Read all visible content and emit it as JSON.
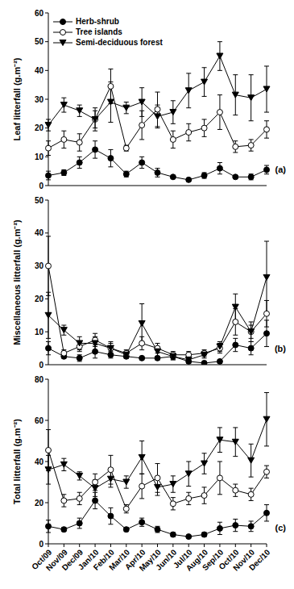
{
  "chart_data": [
    {
      "type": "line",
      "ylabel": "Leaf litterfall (g.m⁻²)",
      "label": "(a)",
      "categories": [
        "Oct/09",
        "Nov/09",
        "Dec/09",
        "Jan/10",
        "Feb/10",
        "Mar/10",
        "Apr/10",
        "May/10",
        "Jun/10",
        "Jul/10",
        "Aug/10",
        "Sep/10",
        "Oct/10",
        "Nov/10",
        "Dec/10"
      ],
      "series": [
        {
          "name": "Herb-shrub",
          "color": "#000000",
          "marker": "circle",
          "line_style": "solid",
          "values": [
            3.5,
            4.5,
            8,
            12.5,
            9.5,
            4,
            8,
            4.5,
            3,
            2,
            3.5,
            6,
            3,
            3,
            5.5
          ],
          "errors": [
            1.5,
            1,
            2,
            3,
            3,
            1,
            2,
            1.5,
            0.5,
            0.5,
            1,
            2,
            0.5,
            1,
            1.5
          ]
        },
        {
          "name": "Tree islands",
          "color": "#000000",
          "marker": "open_circle",
          "line_style": "solid",
          "values": [
            13,
            16,
            15,
            23,
            34.5,
            13,
            21,
            26.5,
            16,
            18.5,
            20,
            25.5,
            13.5,
            14,
            19.5
          ],
          "errors": [
            2.5,
            3,
            3,
            3,
            6,
            1,
            5,
            6,
            3,
            3,
            3,
            6,
            2,
            2,
            3
          ]
        },
        {
          "name": "Semi-deciduous forest",
          "color": "#000000",
          "marker": "triangle_down",
          "line_style": "solid",
          "values": [
            21,
            28,
            26,
            23,
            29,
            27,
            29,
            24,
            25.5,
            33,
            36,
            45,
            31.5,
            30.5,
            33.5
          ],
          "errors": [
            2,
            2.5,
            2,
            4,
            7,
            2,
            5,
            4,
            4,
            6,
            5,
            5,
            7,
            8,
            8
          ]
        }
      ],
      "ylim": [
        0,
        60
      ],
      "yticks": [
        0,
        10,
        20,
        30,
        40,
        50,
        60
      ],
      "grid": false,
      "legend": "upper left",
      "tick_labels": "y"
    },
    {
      "type": "line",
      "ylabel": "Miscellaneous litterfall (g.m⁻²)",
      "label": "(b)",
      "categories": [
        "Oct/09",
        "Nov/09",
        "Dec/09",
        "Jan/10",
        "Feb/10",
        "Mar/10",
        "Apr/10",
        "May/10",
        "Jun/10",
        "Jul/10",
        "Aug/10",
        "Sep/10",
        "Oct/10",
        "Nov/10",
        "Dec/10"
      ],
      "series": [
        {
          "name": "Herb-shrub",
          "color": "#000000",
          "marker": "circle",
          "line_style": "solid",
          "values": [
            5,
            2.5,
            2,
            4,
            3,
            2.5,
            2,
            2,
            2.5,
            1,
            0.5,
            1,
            6,
            5,
            9.5
          ],
          "errors": [
            2,
            0.5,
            1,
            2,
            1,
            0.5,
            0.5,
            0.5,
            1,
            0.5,
            0.3,
            0.5,
            2,
            2,
            4
          ]
        },
        {
          "name": "Tree islands",
          "color": "#000000",
          "marker": "open_circle",
          "line_style": "solid",
          "values": [
            30,
            3.5,
            5.5,
            7.5,
            5,
            3.5,
            6.5,
            5,
            3,
            3,
            3.5,
            5,
            13,
            10,
            15.5
          ],
          "errors": [
            9,
            1,
            1.5,
            2,
            1.5,
            1,
            2,
            1.5,
            1,
            1,
            1,
            1.5,
            4,
            2,
            4
          ]
        },
        {
          "name": "Semi-deciduous forest",
          "color": "#000000",
          "marker": "triangle_down",
          "line_style": "solid",
          "values": [
            15,
            10.5,
            6.5,
            6.5,
            5,
            3,
            12.5,
            4,
            2.5,
            1.5,
            3,
            5.5,
            17.5,
            10,
            26.5
          ],
          "errors": [
            7,
            1.5,
            2,
            2,
            2,
            1,
            6,
            1.5,
            1,
            0.5,
            1,
            1.5,
            4,
            3,
            11
          ]
        }
      ],
      "ylim": [
        0,
        50
      ],
      "yticks": [
        0,
        10,
        20,
        30,
        40,
        50
      ],
      "grid": false,
      "tick_labels": "y"
    },
    {
      "type": "line",
      "ylabel": "Total litterfall (g.m⁻²)",
      "label": "(c)",
      "categories": [
        "Oct/09",
        "Nov/09",
        "Dec/09",
        "Jan/10",
        "Feb/10",
        "Mar/10",
        "Apr/10",
        "May/10",
        "Jun/10",
        "Jul/10",
        "Aug/10",
        "Sep/10",
        "Oct/10",
        "Nov/10",
        "Dec/10"
      ],
      "series": [
        {
          "name": "Herb-shrub",
          "color": "#000000",
          "marker": "circle",
          "line_style": "solid",
          "values": [
            8.5,
            7,
            10,
            21,
            13.5,
            7,
            10.5,
            7,
            4.5,
            3.5,
            4.5,
            7.5,
            9,
            8.5,
            15
          ],
          "errors": [
            3,
            1,
            2.5,
            4,
            4,
            1,
            2,
            1.5,
            1,
            0.5,
            1,
            3,
            3,
            2.5,
            4
          ]
        },
        {
          "name": "Tree islands",
          "color": "#000000",
          "marker": "open_circle",
          "line_style": "solid",
          "values": [
            45.5,
            21,
            22,
            30,
            36,
            17,
            28,
            32,
            19.5,
            22,
            23.5,
            32,
            26,
            24,
            35
          ],
          "errors": [
            10,
            3,
            3,
            4,
            7,
            2,
            6,
            7,
            3,
            3,
            4,
            8,
            3,
            3,
            3
          ]
        },
        {
          "name": "Semi-deciduous forest",
          "color": "#000000",
          "marker": "triangle_down",
          "line_style": "solid",
          "values": [
            36,
            38.5,
            33,
            27,
            31.5,
            30,
            42,
            27.5,
            29,
            34,
            39,
            50.5,
            49.5,
            40.5,
            60.5
          ],
          "errors": [
            7,
            3,
            2,
            4,
            4,
            3,
            8,
            4,
            4,
            6,
            5,
            6,
            7,
            8,
            13
          ]
        }
      ],
      "ylim": [
        0,
        80
      ],
      "yticks": [
        0,
        20,
        40,
        60,
        80
      ],
      "grid": false
    }
  ]
}
